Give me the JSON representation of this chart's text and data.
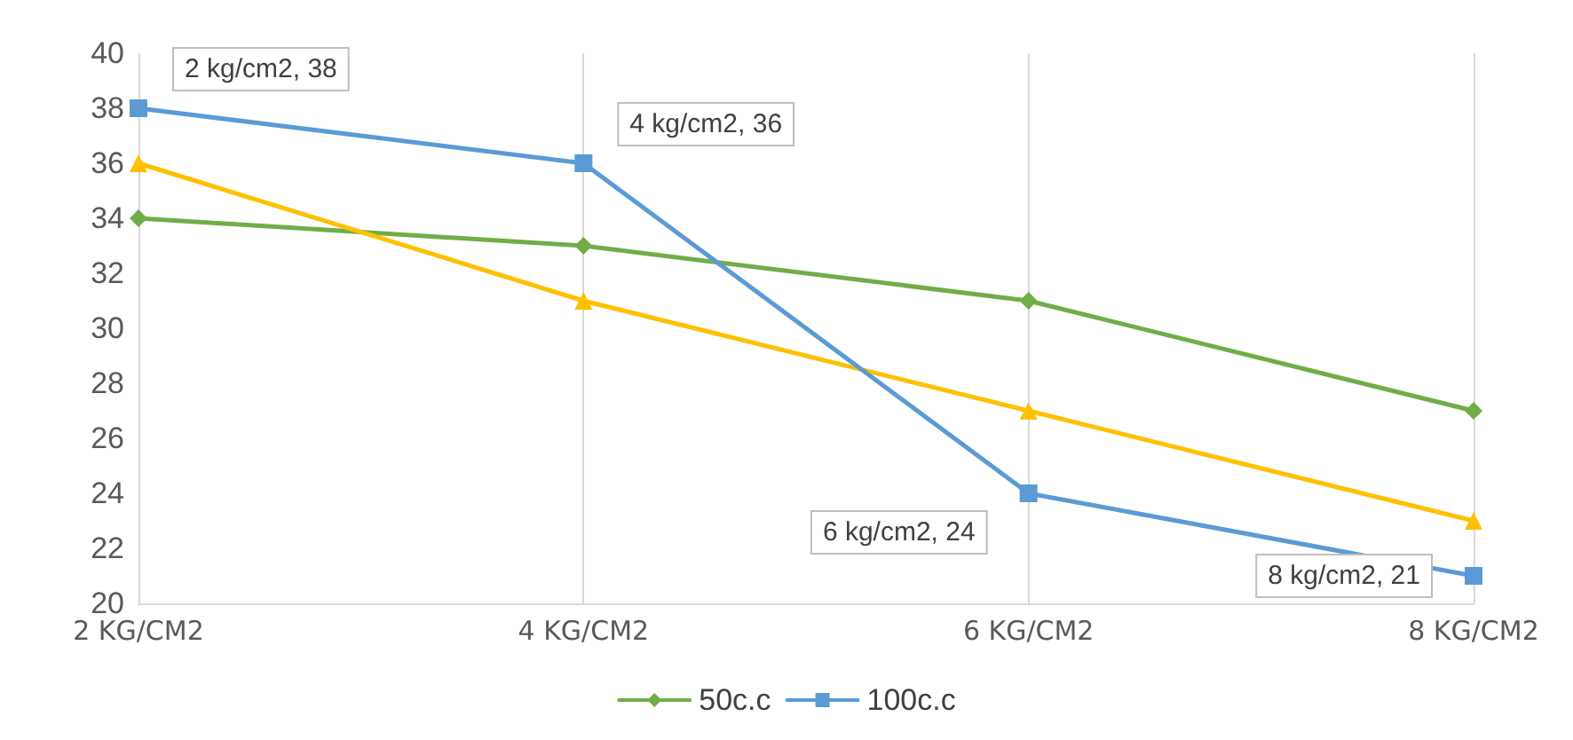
{
  "chart_data": {
    "type": "line",
    "categories": [
      "2 KG/CM2",
      "4 KG/CM2",
      "6 KG/CM2",
      "8 KG/CM2"
    ],
    "series": [
      {
        "name": "50c.c",
        "color": "#70ad47",
        "marker": "diamond",
        "values": [
          34,
          33,
          31,
          27
        ]
      },
      {
        "color": "#ffc000",
        "marker": "triangle",
        "values": [
          36,
          31,
          27,
          23
        ]
      },
      {
        "name": "100c.c",
        "color": "#5b9bd5",
        "marker": "square",
        "values": [
          38,
          36,
          24,
          21
        ],
        "value_labels": [
          "2 kg/cm2, 38",
          "4 kg/cm2, 36",
          "6 kg/cm2, 24",
          "8 kg/cm2, 21"
        ]
      }
    ],
    "ylim": [
      20,
      40
    ],
    "yticks": [
      20,
      22,
      24,
      26,
      28,
      30,
      32,
      34,
      36,
      38,
      40
    ],
    "grid": "x",
    "legend": "bottom",
    "line_style": "solid"
  }
}
